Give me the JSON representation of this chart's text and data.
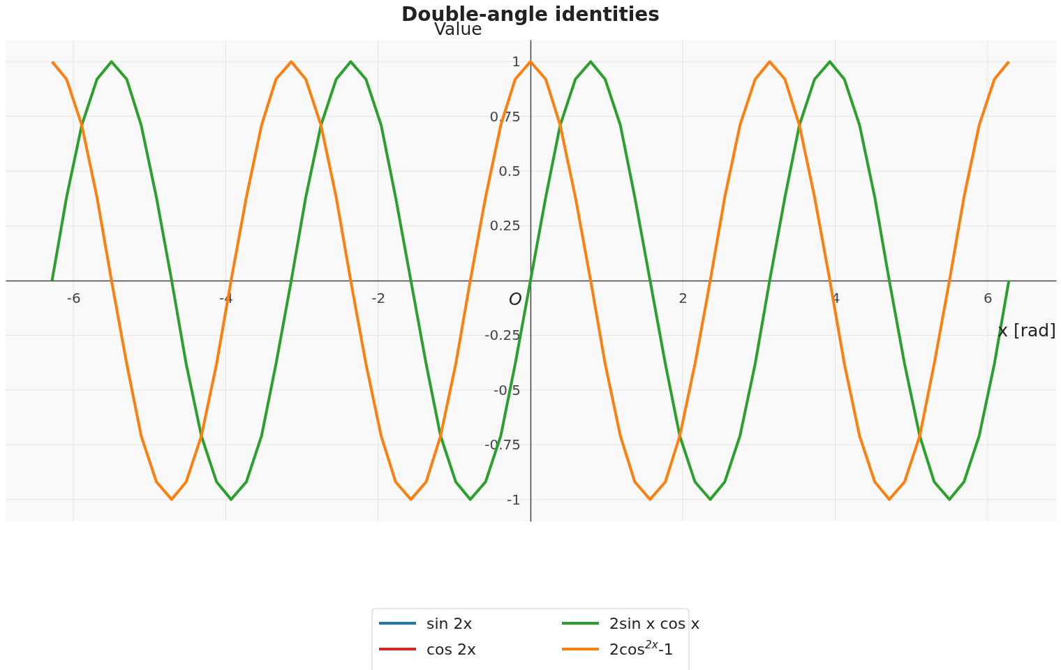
{
  "chart_data": {
    "type": "line",
    "title": "Double-angle identities",
    "xlabel": "x [rad]",
    "ylabel": "Value",
    "annotations": [
      "O"
    ],
    "x": [
      -6.28,
      -6.09,
      -5.89,
      -5.69,
      -5.5,
      -5.3,
      -5.11,
      -4.91,
      -4.71,
      -4.52,
      -4.32,
      -4.12,
      -3.93,
      -3.73,
      -3.53,
      -3.34,
      -3.14,
      -2.95,
      -2.75,
      -2.55,
      -2.36,
      -2.16,
      -1.96,
      -1.77,
      -1.57,
      -1.37,
      -1.18,
      -0.98,
      -0.79,
      -0.59,
      -0.39,
      -0.2,
      0,
      0.2,
      0.39,
      0.59,
      0.79,
      0.98,
      1.18,
      1.37,
      1.57,
      1.77,
      1.96,
      2.16,
      2.36,
      2.55,
      2.75,
      2.95,
      3.14,
      3.34,
      3.53,
      3.73,
      3.93,
      4.12,
      4.32,
      4.52,
      4.71,
      4.91,
      5.11,
      5.3,
      5.5,
      5.69,
      5.89,
      6.09,
      6.28
    ],
    "series": [
      {
        "name": "sin 2x",
        "color": "#1f77b4",
        "values": [
          null,
          null,
          null,
          null,
          null,
          null,
          null,
          null,
          null,
          null,
          null,
          null,
          null,
          null,
          null,
          null,
          null,
          null,
          null,
          null,
          null,
          null,
          null,
          null,
          null,
          null,
          null,
          null,
          null,
          null,
          null,
          null,
          null,
          null,
          null,
          null,
          null,
          null,
          null,
          null,
          null,
          null,
          null,
          null,
          null,
          null,
          null,
          null,
          null,
          null,
          null,
          null,
          null,
          null,
          null,
          null,
          null,
          null,
          null,
          null,
          null,
          null,
          null,
          null,
          null
        ]
      },
      {
        "name": "2sin x cos x",
        "color": "#2ca02c",
        "values": [
          0,
          0.38,
          0.71,
          0.92,
          1,
          0.92,
          0.71,
          0.38,
          0,
          -0.38,
          -0.71,
          -0.92,
          -1,
          -0.92,
          -0.71,
          -0.38,
          0,
          0.38,
          0.71,
          0.92,
          1,
          0.92,
          0.71,
          0.38,
          0,
          -0.38,
          -0.71,
          -0.92,
          -1,
          -0.92,
          -0.71,
          -0.38,
          0,
          0.38,
          0.71,
          0.92,
          1,
          0.92,
          0.71,
          0.38,
          0,
          -0.38,
          -0.71,
          -0.92,
          -1,
          -0.92,
          -0.71,
          -0.38,
          0,
          0.38,
          0.71,
          0.92,
          1,
          0.92,
          0.71,
          0.38,
          0,
          -0.38,
          -0.71,
          -0.92,
          -1,
          -0.92,
          -0.71,
          -0.38,
          0
        ]
      },
      {
        "name": "cos 2x",
        "color": "#d62728",
        "values": [
          null,
          null,
          null,
          null,
          null,
          null,
          null,
          null,
          null,
          null,
          null,
          null,
          null,
          null,
          null,
          null,
          null,
          null,
          null,
          null,
          null,
          null,
          null,
          null,
          null,
          null,
          null,
          null,
          null,
          null,
          null,
          null,
          null,
          null,
          null,
          null,
          null,
          null,
          null,
          null,
          null,
          null,
          null,
          null,
          null,
          null,
          null,
          null,
          null,
          null,
          null,
          null,
          null,
          null,
          null,
          null,
          null,
          null,
          null,
          null,
          null,
          null,
          null,
          null,
          null
        ]
      },
      {
        "name": "2cos$^{2x}$-1",
        "color": "#ff7f0e",
        "values": [
          1,
          0.92,
          0.71,
          0.38,
          0,
          -0.38,
          -0.71,
          -0.92,
          -1,
          -0.92,
          -0.71,
          -0.38,
          0,
          0.38,
          0.71,
          0.92,
          1,
          0.92,
          0.71,
          0.38,
          0,
          -0.38,
          -0.71,
          -0.92,
          -1,
          -0.92,
          -0.71,
          -0.38,
          0,
          0.38,
          0.71,
          0.92,
          1,
          0.92,
          0.71,
          0.38,
          0,
          -0.38,
          -0.71,
          -0.92,
          -1,
          -0.92,
          -0.71,
          -0.38,
          0,
          0.38,
          0.71,
          0.92,
          1,
          0.92,
          0.71,
          0.38,
          0,
          -0.38,
          -0.71,
          -0.92,
          -1,
          -0.92,
          -0.71,
          -0.38,
          0,
          0.38,
          0.71,
          0.92,
          1
        ]
      }
    ],
    "xlim": [
      -6.89,
      6.9
    ],
    "ylim": [
      -1.1,
      1.1
    ],
    "xticks": [
      -6,
      -4,
      -2,
      2,
      4,
      6
    ],
    "yticks": [
      -1,
      -0.75,
      -0.5,
      -0.25,
      0.25,
      0.5,
      0.75,
      1
    ],
    "grid": true,
    "legend": "bottom",
    "marker": "none",
    "line_style": "solid"
  }
}
